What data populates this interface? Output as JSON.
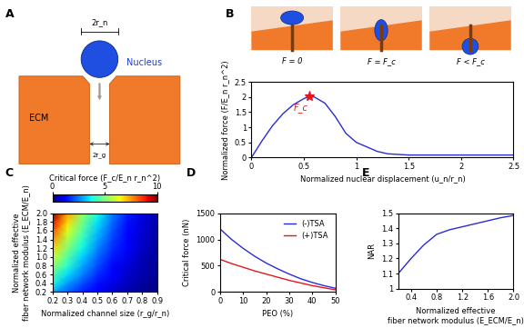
{
  "diagram": {
    "panel": "A",
    "nucleus_label": "Nucleus",
    "ecm_label": "ECM",
    "nucleus_size_label": "2r_n",
    "channel_size_label": "2r_g"
  },
  "chart_data": [
    {
      "panel": "B",
      "type": "line",
      "x_label": "Normalized nuclear displacement (u_n/r_n)",
      "y_label": "Normalized force (F/E_n r_n^2)",
      "x": [
        0,
        0.1,
        0.2,
        0.3,
        0.4,
        0.5,
        0.55,
        0.6,
        0.7,
        0.8,
        0.9,
        1.0,
        1.1,
        1.2,
        1.3,
        1.5,
        2.0,
        2.5
      ],
      "values": [
        0,
        0.55,
        1.05,
        1.45,
        1.75,
        1.95,
        2.02,
        2.0,
        1.8,
        1.35,
        0.8,
        0.5,
        0.35,
        0.2,
        0.12,
        0.08,
        0.08,
        0.08
      ],
      "color": "#2b2bd6",
      "xlim": [
        0,
        2.5
      ],
      "ylim": [
        0,
        2.5
      ],
      "xticks": [
        0,
        0.5,
        1,
        1.5,
        2,
        2.5
      ],
      "yticks": [
        0,
        0.5,
        1,
        1.5,
        2,
        2.5
      ],
      "annotation": {
        "text": "F_c",
        "x": 0.55,
        "y": 2.02,
        "color": "#e8141b",
        "marker": "star"
      },
      "insets": [
        "F = 0",
        "F = F_c",
        "F < F_c"
      ]
    },
    {
      "panel": "C",
      "type": "heatmap",
      "x_label": "Normalized channel size (r_g/r_n)",
      "y_label": "Normalized effective\nfiber network modulus (E_ECM/E_n)",
      "x": [
        0.2,
        0.3,
        0.4,
        0.5,
        0.6,
        0.7,
        0.8,
        0.9
      ],
      "y": [
        0.2,
        0.4,
        0.6,
        0.8,
        1.0,
        1.2,
        1.4,
        1.6,
        1.8,
        2.0
      ],
      "cells": [
        [
          3.0,
          2.2,
          1.6,
          1.1,
          0.7,
          0.4,
          0.2,
          0.1
        ],
        [
          3.8,
          2.8,
          2.0,
          1.4,
          0.9,
          0.55,
          0.3,
          0.15
        ],
        [
          4.5,
          3.4,
          2.5,
          1.7,
          1.1,
          0.7,
          0.4,
          0.2
        ],
        [
          5.3,
          4.0,
          2.9,
          2.0,
          1.3,
          0.8,
          0.45,
          0.2
        ],
        [
          6.0,
          4.5,
          3.3,
          2.3,
          1.5,
          0.95,
          0.5,
          0.25
        ],
        [
          6.8,
          5.1,
          3.7,
          2.6,
          1.7,
          1.1,
          0.6,
          0.3
        ],
        [
          7.5,
          5.6,
          4.1,
          2.9,
          1.9,
          1.2,
          0.7,
          0.3
        ],
        [
          8.3,
          6.2,
          4.5,
          3.2,
          2.1,
          1.3,
          0.75,
          0.35
        ],
        [
          9.1,
          6.8,
          4.9,
          3.5,
          2.3,
          1.4,
          0.8,
          0.4
        ],
        [
          10.0,
          7.4,
          5.4,
          3.8,
          2.5,
          1.6,
          0.9,
          0.4
        ]
      ],
      "xlim": [
        0.2,
        0.9
      ],
      "ylim": [
        0.2,
        2.0
      ],
      "xticks": [
        0.2,
        0.3,
        0.4,
        0.5,
        0.6,
        0.7,
        0.8,
        0.9
      ],
      "yticks": [
        0.2,
        0.4,
        0.6,
        0.8,
        1.0,
        1.2,
        1.4,
        1.6,
        1.8,
        2.0
      ],
      "colorbar": {
        "label": "Critical force (F_c/E_n r_n^2)",
        "range": [
          0,
          10
        ],
        "ticks": [
          0,
          5,
          10
        ]
      }
    },
    {
      "panel": "D",
      "type": "line",
      "x_label": "PEO (%)",
      "y_label": "Critical force (nN)",
      "x": [
        0,
        5,
        10,
        15,
        20,
        25,
        30,
        35,
        40,
        45,
        50
      ],
      "series": [
        {
          "name": "(-)TSA",
          "color": "#2b2bd6",
          "values": [
            1200,
            1000,
            830,
            680,
            550,
            440,
            340,
            250,
            180,
            120,
            70
          ]
        },
        {
          "name": "(+)TSA",
          "color": "#e8141b",
          "values": [
            620,
            540,
            470,
            400,
            340,
            280,
            220,
            170,
            120,
            80,
            40
          ]
        }
      ],
      "xlim": [
        0,
        50
      ],
      "ylim": [
        0,
        1500
      ],
      "xticks": [
        0,
        10,
        20,
        30,
        40,
        50
      ],
      "yticks": [
        0,
        500,
        1000,
        1500
      ],
      "legend": "upper right"
    },
    {
      "panel": "E",
      "type": "line",
      "x_label": "Normalized effective\nfiber network modulus (E_ECM/E_n)",
      "y_label": "NAR",
      "x": [
        0.2,
        0.4,
        0.6,
        0.8,
        1.0,
        1.2,
        1.4,
        1.6,
        1.8,
        2.0
      ],
      "values": [
        1.1,
        1.2,
        1.29,
        1.36,
        1.39,
        1.41,
        1.43,
        1.45,
        1.47,
        1.485
      ],
      "color": "#2b2bd6",
      "xlim": [
        0.2,
        2.0
      ],
      "ylim": [
        1,
        1.5
      ],
      "xticks": [
        0.4,
        0.8,
        1.2,
        1.6,
        2.0
      ],
      "yticks": [
        1,
        1.1,
        1.2,
        1.3,
        1.4,
        1.5
      ]
    }
  ]
}
